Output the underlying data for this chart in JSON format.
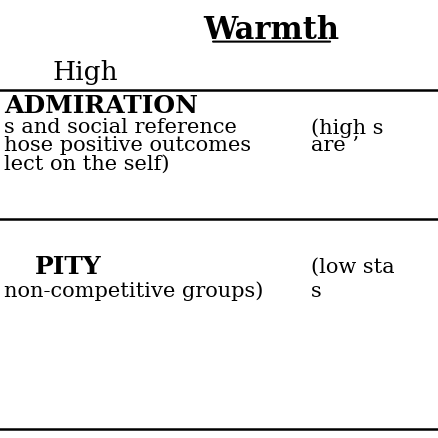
{
  "title": "Warmth",
  "background_color": "#ffffff",
  "text_color": "#000000",
  "warmth_high_label": "High",
  "admiration_header": "ADMIRATION",
  "admiration_left_line1": "s and social reference",
  "admiration_left_line2": "hose positive outcomes",
  "admiration_left_line3": "lect on the self)",
  "admiration_right_line1": "(high s",
  "admiration_right_line2": "are ’",
  "pity_header": "PITY",
  "pity_left_line1": "non-competitive groups)",
  "pity_right_line1": "(low sta",
  "pity_right_line2": "s",
  "header_fontsize": 22,
  "high_label_fontsize": 19,
  "cell_header_fontsize": 18,
  "cell_body_fontsize": 15
}
